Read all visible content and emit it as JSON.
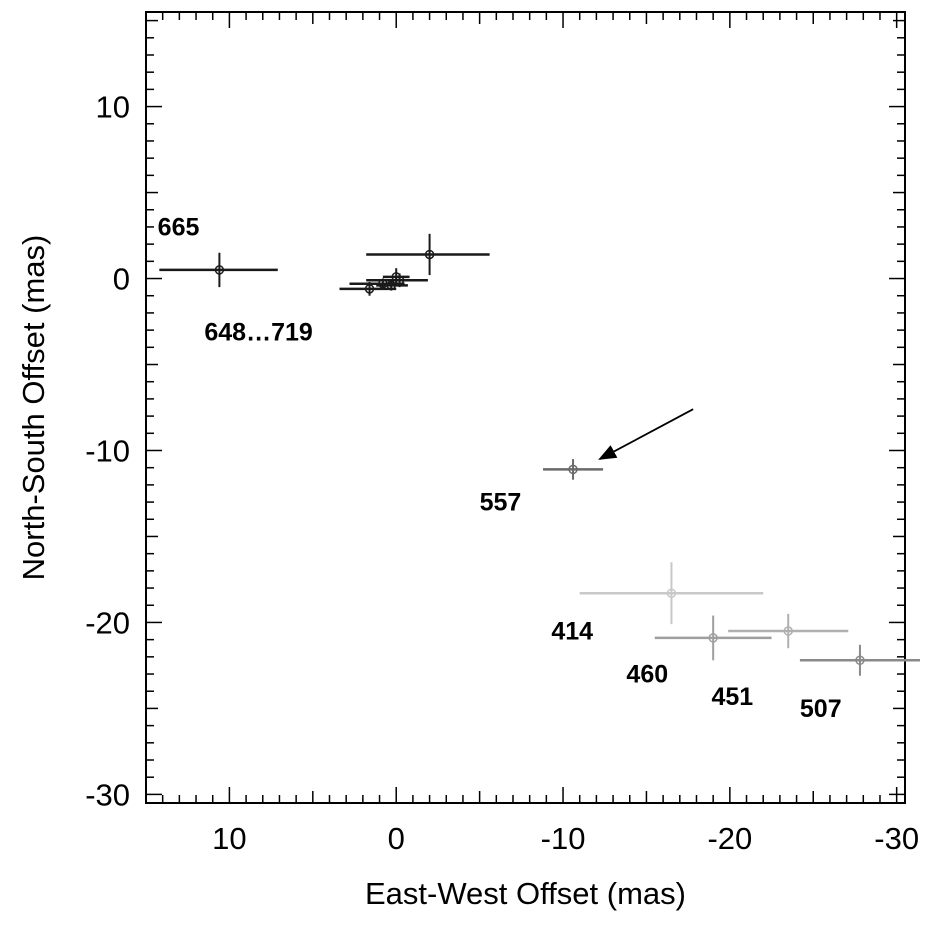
{
  "chart_data": {
    "type": "scatter",
    "xlabel": "East-West Offset (mas)",
    "ylabel": "North-South Offset (mas)",
    "xlim": [
      15,
      -30.5
    ],
    "ylim": [
      -30.5,
      15.5
    ],
    "x_reversed": true,
    "x_ticks": [
      10,
      0,
      -10,
      -20,
      -30
    ],
    "x_tick_labels": [
      "10",
      "0",
      "-10",
      "-20",
      "-30"
    ],
    "y_ticks": [
      10,
      0,
      -10,
      -20,
      -30
    ],
    "y_tick_labels": [
      "10",
      "0",
      "-10",
      "-20",
      "-30"
    ],
    "grid": false,
    "points": [
      {
        "label": "665",
        "x": 10.6,
        "y": 0.5,
        "xerr_low": 3.6,
        "xerr_high": 3.5,
        "yerr": 1.0,
        "color": "#1a1a1a"
      },
      {
        "x": -2.0,
        "y": 1.4,
        "xerr_low": 3.8,
        "xerr_high": 3.6,
        "yerr": 1.2,
        "color": "#1a1a1a"
      },
      {
        "x": 0.0,
        "y": 0.1,
        "xerr_low": 0.8,
        "xerr_high": 0.8,
        "yerr": 0.5,
        "color": "#1a1a1a"
      },
      {
        "x": -0.2,
        "y": -0.1,
        "xerr_low": 2.0,
        "xerr_high": 1.7,
        "yerr": 0.4,
        "color": "#1a1a1a"
      },
      {
        "x": 0.8,
        "y": -0.3,
        "xerr_low": 2.0,
        "xerr_high": 1.3,
        "yerr": 0.3,
        "color": "#1a1a1a"
      },
      {
        "x": 1.6,
        "y": -0.6,
        "xerr_low": 1.8,
        "xerr_high": 1.6,
        "yerr": 0.4,
        "color": "#1a1a1a"
      },
      {
        "x": 0.3,
        "y": -0.4,
        "xerr_low": 0.9,
        "xerr_high": 1.0,
        "yerr": 0.3,
        "color": "#1a1a1a"
      },
      {
        "label": "557",
        "x": -10.6,
        "y": -11.1,
        "xerr_low": 1.8,
        "xerr_high": 1.8,
        "yerr": 0.6,
        "color": "#6a6a6a"
      },
      {
        "label": "414",
        "x": -16.5,
        "y": -18.3,
        "xerr_low": 5.5,
        "xerr_high": 5.5,
        "yerr": 1.8,
        "color": "#c8c8c8"
      },
      {
        "label": "460",
        "x": -19.0,
        "y": -20.9,
        "xerr_low": 3.5,
        "xerr_high": 3.5,
        "yerr": 1.3,
        "color": "#9e9e9e"
      },
      {
        "label": "451",
        "x": -23.5,
        "y": -20.5,
        "xerr_low": 3.6,
        "xerr_high": 3.6,
        "yerr": 1.0,
        "color": "#b0b0b0"
      },
      {
        "label": "507",
        "x": -27.8,
        "y": -22.2,
        "xerr_low": 3.6,
        "xerr_high": 3.6,
        "yerr": 0.9,
        "color": "#8a8a8a"
      }
    ],
    "annotations": [
      {
        "text": "665",
        "x": 14.3,
        "y": 2.5
      },
      {
        "text": "648…719",
        "x": 11.5,
        "y": -3.6
      },
      {
        "text": "557",
        "x": -5.0,
        "y": -13.5
      },
      {
        "text": "414",
        "x": -9.3,
        "y": -21.0
      },
      {
        "text": "460",
        "x": -13.8,
        "y": -23.5
      },
      {
        "text": "451",
        "x": -18.9,
        "y": -24.8
      },
      {
        "text": "507",
        "x": -24.2,
        "y": -25.5
      }
    ],
    "arrow": {
      "from": {
        "x": -17.8,
        "y": -7.6
      },
      "to": {
        "x": -12.2,
        "y": -10.5
      }
    }
  }
}
